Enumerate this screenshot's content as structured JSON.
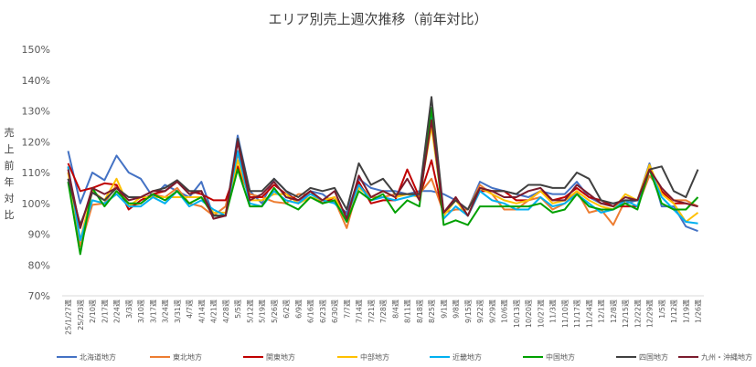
{
  "chart_data": {
    "type": "line",
    "title": "エリア別売上週次推移（前年対比）",
    "ylabel": "売上前年対比",
    "xlabel": "",
    "ylim": [
      70,
      150
    ],
    "yticks": [
      "70%",
      "80%",
      "90%",
      "100%",
      "110%",
      "120%",
      "130%",
      "140%",
      "150%"
    ],
    "grid": false,
    "legend_position": "bottom",
    "x": [
      "25/1/27週",
      "25/2/3週",
      "2/10週",
      "2/17週",
      "2/24週",
      "3/3週",
      "3/10週",
      "3/17週",
      "3/24週",
      "3/31週",
      "4/7週",
      "4/14週",
      "4/21週",
      "4/28週",
      "5/5週",
      "5/12週",
      "5/19週",
      "5/26週",
      "6/2週",
      "6/9週",
      "6/16週",
      "6/23週",
      "6/30週",
      "7/7週",
      "7/14週",
      "7/21週",
      "7/28週",
      "8/4週",
      "8/11週",
      "8/18週",
      "8/25週",
      "9/1週",
      "9/8週",
      "9/15週",
      "9/22週",
      "9/29週",
      "10/6週",
      "10/13週",
      "10/20週",
      "10/27週",
      "11/3週",
      "11/10週",
      "11/17週",
      "11/24週",
      "12/1週",
      "12/8週",
      "12/15週",
      "12/22週",
      "12/29週",
      "1/5週",
      "1/12週",
      "1/19週",
      "1/26週"
    ],
    "series": [
      {
        "name": "北海道地方",
        "color": "#4472C4",
        "values": [
          117,
          100,
          110,
          107.5,
          115.5,
          110,
          108,
          102,
          106,
          104,
          102,
          107,
          96,
          96,
          122,
          104,
          100,
          108,
          104,
          100,
          104,
          103,
          100,
          97,
          108,
          105,
          104,
          104,
          103,
          104,
          104,
          103,
          101,
          98,
          107,
          105,
          104,
          103,
          102,
          104,
          103,
          103,
          107,
          102,
          100,
          100,
          100,
          101,
          113,
          99,
          99,
          92.5,
          91
        ]
      },
      {
        "name": "東北地方",
        "color": "#ED7D31",
        "values": [
          112,
          86,
          99.5,
          100,
          106,
          99,
          100,
          103,
          102,
          105,
          100,
          99,
          96,
          99,
          116,
          103,
          102,
          100.5,
          100,
          103,
          103,
          101,
          101,
          92,
          106,
          102,
          102,
          103,
          103,
          103,
          108,
          97,
          98,
          98,
          106,
          103,
          98,
          98,
          101,
          102,
          98,
          100,
          104,
          97,
          98,
          93,
          101,
          99,
          109,
          104,
          101,
          101,
          99
        ]
      },
      {
        "name": "関東地方",
        "color": "#C00000",
        "values": [
          113,
          104,
          105,
          106.5,
          106,
          98,
          101,
          103,
          104,
          107,
          104,
          103,
          101,
          101,
          112,
          102,
          102,
          106,
          103,
          101,
          104,
          100,
          102,
          96,
          107,
          100,
          101,
          101,
          111,
          102,
          114,
          96,
          102,
          96,
          104,
          104,
          104,
          101,
          101,
          104,
          101,
          102,
          105,
          102,
          101,
          99,
          99,
          99,
          111,
          104,
          100,
          100,
          99
        ]
      },
      {
        "name": "中部地方",
        "color": "#FFC000",
        "values": [
          110,
          88,
          104,
          101,
          108,
          99,
          102,
          102,
          102,
          102,
          102,
          102,
          97,
          97,
          114,
          101,
          101,
          103,
          103,
          100,
          102,
          101,
          102,
          95,
          105,
          102,
          104,
          102,
          103,
          102,
          125,
          96,
          101,
          96,
          105,
          103,
          101,
          100,
          101,
          104,
          100,
          101,
          104,
          101,
          99,
          98,
          103,
          101,
          112.5,
          103,
          100,
          94,
          97
        ]
      },
      {
        "name": "近畿地方",
        "color": "#00B0F0",
        "values": [
          112,
          88,
          101,
          100,
          103,
          99,
          99,
          102,
          100,
          104,
          99,
          101,
          98,
          96,
          117,
          100,
          99,
          104,
          101,
          100,
          103,
          101,
          100,
          96,
          106,
          101,
          102,
          101,
          102,
          103,
          128,
          95,
          99,
          96,
          104,
          101,
          100,
          98,
          98,
          102,
          99,
          100,
          103,
          100,
          97,
          98,
          101,
          99,
          111,
          102,
          98,
          94,
          93.5
        ]
      },
      {
        "name": "中国地方",
        "color": "#00A000",
        "values": [
          107,
          83.5,
          105,
          99,
          104,
          100,
          100,
          103,
          101,
          104,
          100,
          102,
          96,
          96,
          111,
          99,
          99,
          105,
          100,
          98,
          102,
          100,
          101,
          94,
          104,
          101,
          103,
          97,
          101,
          99,
          131,
          93,
          94.5,
          93,
          99,
          99,
          99,
          99,
          99,
          100,
          97,
          98,
          103,
          99,
          98,
          98,
          100,
          98,
          111,
          100,
          98,
          98,
          102
        ]
      },
      {
        "name": "四国地方",
        "color": "#404040",
        "values": [
          108,
          93,
          103.5,
          101,
          105,
          102,
          102,
          104,
          105,
          107.5,
          104,
          104,
          96,
          96,
          121,
          104,
          104,
          108,
          104,
          102,
          105,
          104,
          105,
          98,
          113,
          106,
          108,
          103,
          103,
          103,
          134.5,
          97,
          101,
          98,
          105,
          104,
          104,
          103,
          106,
          106,
          105,
          105,
          110,
          108,
          101,
          100,
          101,
          101,
          111,
          112,
          104,
          102,
          111
        ]
      },
      {
        "name": "九州・沖縄地方",
        "color": "#7B1C2E",
        "values": [
          111,
          92,
          105,
          103,
          105,
          101,
          102,
          104,
          104,
          107,
          103,
          104,
          95,
          96,
          120,
          101,
          103,
          107,
          102,
          101,
          104,
          101,
          104,
          95,
          109,
          102,
          104,
          102,
          108,
          101,
          127,
          97,
          102,
          96,
          105,
          104,
          102,
          102,
          104,
          105,
          101,
          101,
          106,
          103,
          100,
          99,
          102,
          101,
          111,
          105,
          101,
          100,
          99
        ]
      }
    ]
  }
}
